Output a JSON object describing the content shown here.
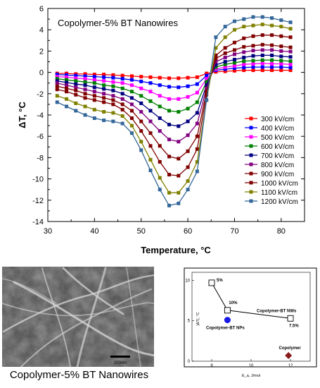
{
  "chart_data": [
    {
      "type": "line",
      "title": "Copolymer-5% BT Nanowires",
      "xlabel": "Temperature, °C",
      "ylabel": "ΔT, °C",
      "xlim": [
        30,
        85
      ],
      "ylim": [
        -14,
        6
      ],
      "xticks": [
        "30",
        "40",
        "50",
        "60",
        "70",
        "80"
      ],
      "yticks": [
        "-14",
        "-12",
        "-10",
        "-8",
        "-6",
        "-4",
        "-2",
        "0",
        "2",
        "4",
        "6"
      ],
      "grid": false,
      "legend_position": "right-middle",
      "x": [
        32,
        34,
        36,
        38,
        40,
        42,
        44,
        46,
        48,
        50,
        52,
        54,
        56,
        58,
        60,
        62,
        64,
        66,
        68,
        70,
        72,
        74,
        76,
        78,
        80,
        82
      ],
      "series": [
        {
          "name": "300 kV/cm",
          "color": "#ff0000",
          "values": [
            -0.1,
            -0.1,
            -0.15,
            -0.15,
            -0.2,
            -0.2,
            -0.25,
            -0.3,
            -0.35,
            -0.4,
            -0.45,
            -0.5,
            -0.55,
            -0.55,
            -0.5,
            -0.45,
            -0.1,
            0.05,
            0.1,
            0.15,
            0.2,
            0.2,
            0.2,
            0.2,
            0.2,
            0.2
          ]
        },
        {
          "name": "400 kV/cm",
          "color": "#0000ff",
          "values": [
            -0.2,
            -0.25,
            -0.3,
            -0.35,
            -0.4,
            -0.45,
            -0.5,
            -0.6,
            -0.7,
            -0.85,
            -1.0,
            -1.2,
            -1.35,
            -1.4,
            -1.3,
            -1.1,
            -0.3,
            0.2,
            0.3,
            0.4,
            0.45,
            0.5,
            0.5,
            0.5,
            0.5,
            0.45
          ]
        },
        {
          "name": "500 kV/cm",
          "color": "#ff00ff",
          "values": [
            -0.4,
            -0.45,
            -0.55,
            -0.6,
            -0.7,
            -0.8,
            -0.9,
            -1.0,
            -1.2,
            -1.5,
            -1.8,
            -2.2,
            -2.5,
            -2.5,
            -2.3,
            -1.9,
            -0.6,
            0.3,
            0.5,
            0.6,
            0.75,
            0.8,
            0.85,
            0.8,
            0.8,
            0.75
          ]
        },
        {
          "name": "600 kV/cm",
          "color": "#008000",
          "values": [
            -0.6,
            -0.7,
            -0.8,
            -0.9,
            -1.0,
            -1.2,
            -1.3,
            -1.5,
            -1.8,
            -2.2,
            -2.7,
            -3.2,
            -3.6,
            -3.7,
            -3.4,
            -2.8,
            -0.9,
            0.5,
            0.75,
            0.9,
            1.05,
            1.1,
            1.15,
            1.15,
            1.1,
            1.05
          ]
        },
        {
          "name": "700 kV/cm",
          "color": "#000080",
          "values": [
            -0.8,
            -0.95,
            -1.1,
            -1.2,
            -1.4,
            -1.55,
            -1.7,
            -2.0,
            -2.4,
            -2.9,
            -3.6,
            -4.3,
            -4.9,
            -5.05,
            -4.6,
            -3.8,
            -1.2,
            0.7,
            1.0,
            1.2,
            1.4,
            1.55,
            1.6,
            1.6,
            1.5,
            1.45
          ]
        },
        {
          "name": "800 kV/cm",
          "color": "#800080",
          "values": [
            -1.0,
            -1.2,
            -1.4,
            -1.6,
            -1.8,
            -2.0,
            -2.2,
            -2.5,
            -3.0,
            -3.7,
            -4.6,
            -5.5,
            -6.3,
            -6.5,
            -5.9,
            -4.8,
            -1.5,
            1.0,
            1.4,
            1.7,
            1.9,
            2.05,
            2.1,
            2.1,
            2.0,
            1.95
          ]
        },
        {
          "name": "900 kV/cm",
          "color": "#800000",
          "values": [
            -1.3,
            -1.5,
            -1.7,
            -2.0,
            -2.2,
            -2.4,
            -2.6,
            -3.0,
            -3.6,
            -4.6,
            -5.7,
            -6.9,
            -7.9,
            -8.1,
            -7.4,
            -6.0,
            -1.8,
            1.3,
            1.8,
            2.1,
            2.4,
            2.5,
            2.6,
            2.55,
            2.45,
            2.35
          ]
        },
        {
          "name": "1000 kV/cm",
          "color": "#800000",
          "values": [
            -1.6,
            -1.8,
            -2.1,
            -2.4,
            -2.6,
            -2.8,
            -3.0,
            -3.5,
            -4.3,
            -5.5,
            -6.9,
            -8.4,
            -9.6,
            -9.7,
            -8.9,
            -7.2,
            -2.1,
            1.6,
            2.3,
            2.8,
            3.2,
            3.4,
            3.5,
            3.5,
            3.4,
            3.3
          ]
        },
        {
          "name": "1100 kV/cm",
          "color": "#808000",
          "values": [
            -2.2,
            -2.5,
            -2.9,
            -3.2,
            -3.5,
            -3.7,
            -3.8,
            -4.1,
            -5.0,
            -6.5,
            -8.2,
            -9.9,
            -11.3,
            -11.3,
            -10.2,
            -8.4,
            -2.6,
            2.3,
            3.3,
            4.0,
            4.3,
            4.4,
            4.5,
            4.4,
            4.3,
            4.1
          ]
        },
        {
          "name": "1200 kV/cm",
          "color": "#336699",
          "values": [
            -2.8,
            -3.2,
            -3.6,
            -4.0,
            -4.3,
            -4.5,
            -4.6,
            -4.8,
            -5.7,
            -7.3,
            -9.2,
            -11.0,
            -12.5,
            -12.3,
            -11.0,
            -9.3,
            -2.6,
            3.3,
            4.3,
            4.8,
            5.0,
            5.2,
            5.2,
            5.1,
            4.9,
            4.7
          ]
        }
      ]
    },
    {
      "type": "scatter",
      "title": "",
      "xlabel": "E_a, J/mol",
      "ylabel": "|ΔT|, °C",
      "xlim": [
        7,
        13
      ],
      "ylim": [
        0,
        11
      ],
      "xticks": [
        "8",
        "10",
        "12"
      ],
      "yticks": [
        "0",
        "5",
        "10"
      ],
      "legend_position": "none",
      "series": [
        {
          "name": "Copolymer-BT NWs",
          "marker": "square-open",
          "color": "#000000",
          "x": [
            8.0,
            8.8,
            12.0
          ],
          "y": [
            9.7,
            6.3,
            5.3
          ],
          "labels": [
            "5%",
            "10%",
            "7.5%"
          ]
        },
        {
          "name": "Copolymer-BT NPs",
          "marker": "circle",
          "color": "#1a1ae6",
          "x": [
            8.8
          ],
          "y": [
            5.1
          ]
        },
        {
          "name": "Copolymer",
          "marker": "diamond",
          "color": "#8b1a1a",
          "x": [
            11.9
          ],
          "y": [
            0.7
          ]
        }
      ]
    }
  ],
  "micrograph": {
    "scale_bar_label": "200nm"
  },
  "caption": "Copolymer-5% BT Nanowires"
}
